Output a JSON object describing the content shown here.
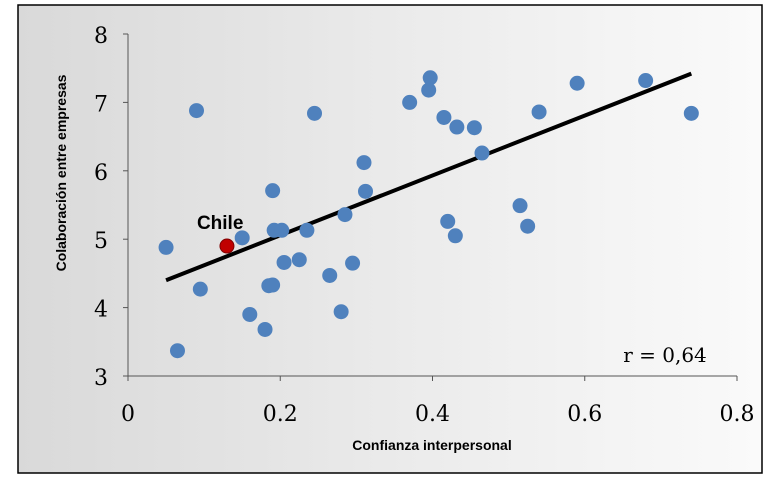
{
  "chart_data": {
    "type": "scatter",
    "xlabel": "Confianza interpersonal",
    "ylabel": "Colaboración entre empresas",
    "xlim": [
      0,
      0.8
    ],
    "ylim": [
      3,
      8
    ],
    "xticks": [
      "0",
      "0.2",
      "0.4",
      "0.6",
      "0.8"
    ],
    "yticks": [
      "3",
      "4",
      "5",
      "6",
      "7",
      "8"
    ],
    "grid": false,
    "legend": "none",
    "annotation": "r = 0,64",
    "highlight": {
      "label": "Chile",
      "x": 0.13,
      "y": 4.9,
      "color": "#c00000"
    },
    "marker_color": "#4f81bd",
    "trendline": {
      "x": [
        0.05,
        0.74
      ],
      "y": [
        4.4,
        7.42
      ],
      "color": "#000000"
    },
    "points": [
      {
        "x": 0.05,
        "y": 4.88
      },
      {
        "x": 0.065,
        "y": 3.37
      },
      {
        "x": 0.09,
        "y": 6.88
      },
      {
        "x": 0.095,
        "y": 4.27
      },
      {
        "x": 0.15,
        "y": 5.02
      },
      {
        "x": 0.16,
        "y": 3.9
      },
      {
        "x": 0.18,
        "y": 3.68
      },
      {
        "x": 0.185,
        "y": 4.32
      },
      {
        "x": 0.19,
        "y": 4.33
      },
      {
        "x": 0.19,
        "y": 5.71
      },
      {
        "x": 0.192,
        "y": 5.13
      },
      {
        "x": 0.202,
        "y": 5.13
      },
      {
        "x": 0.205,
        "y": 4.66
      },
      {
        "x": 0.225,
        "y": 4.7
      },
      {
        "x": 0.235,
        "y": 5.13
      },
      {
        "x": 0.245,
        "y": 6.84
      },
      {
        "x": 0.265,
        "y": 4.47
      },
      {
        "x": 0.28,
        "y": 3.94
      },
      {
        "x": 0.285,
        "y": 5.36
      },
      {
        "x": 0.295,
        "y": 4.65
      },
      {
        "x": 0.31,
        "y": 6.12
      },
      {
        "x": 0.312,
        "y": 5.7
      },
      {
        "x": 0.37,
        "y": 7.0
      },
      {
        "x": 0.395,
        "y": 7.18
      },
      {
        "x": 0.397,
        "y": 7.36
      },
      {
        "x": 0.415,
        "y": 6.78
      },
      {
        "x": 0.42,
        "y": 5.26
      },
      {
        "x": 0.43,
        "y": 5.05
      },
      {
        "x": 0.432,
        "y": 6.64
      },
      {
        "x": 0.455,
        "y": 6.63
      },
      {
        "x": 0.465,
        "y": 6.26
      },
      {
        "x": 0.515,
        "y": 5.49
      },
      {
        "x": 0.525,
        "y": 5.19
      },
      {
        "x": 0.54,
        "y": 6.86
      },
      {
        "x": 0.59,
        "y": 7.28
      },
      {
        "x": 0.68,
        "y": 7.32
      },
      {
        "x": 0.74,
        "y": 6.84
      }
    ]
  }
}
